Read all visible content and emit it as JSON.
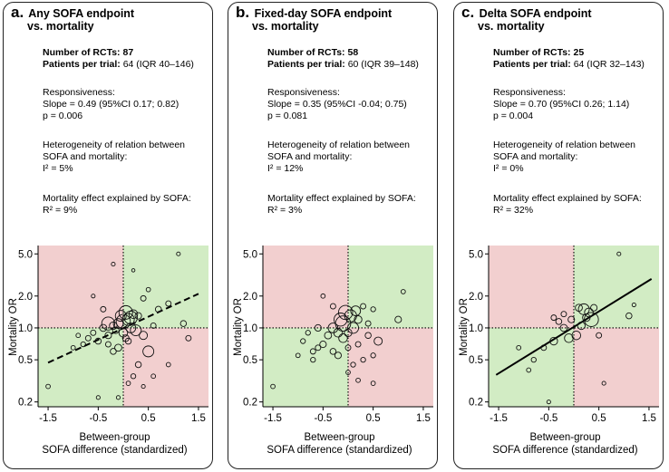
{
  "panels": [
    {
      "letter": "a.",
      "title_line1": "Any SOFA endpoint",
      "title_line2": "vs. mortality",
      "rcts_label": "Number of RCTs:",
      "rcts_value": "87",
      "patients_label": "Patients per trial:",
      "patients_value": "64 (IQR 40–146)",
      "responsiveness_label": "Responsiveness:",
      "slope_text": "Slope = 0.49 (95%CI 0.17; 0.82)",
      "p_text": "p = 0.006",
      "heterogeneity_label1": "Heterogeneity of relation between",
      "heterogeneity_label2": "SOFA and mortality:",
      "i2_text": "I² = 5%",
      "explained_label": "Mortality effect explained by SOFA:",
      "r2_text": "R² = 9%"
    },
    {
      "letter": "b.",
      "title_line1": "Fixed-day SOFA endpoint",
      "title_line2": "vs. mortality",
      "rcts_label": "Number of RCTs:",
      "rcts_value": "58",
      "patients_label": "Patients per trial:",
      "patients_value": "60 (IQR 39–148)",
      "responsiveness_label": "Responsiveness:",
      "slope_text": "Slope = 0.35 (95%CI -0.04; 0.75)",
      "p_text": "p = 0.081",
      "heterogeneity_label1": "Heterogeneity of relation between",
      "heterogeneity_label2": "SOFA and mortality:",
      "i2_text": "I² = 12%",
      "explained_label": "Mortality effect explained by SOFA:",
      "r2_text": "R² = 3%"
    },
    {
      "letter": "c.",
      "title_line1": "Delta SOFA endpoint",
      "title_line2": "vs. mortality",
      "rcts_label": "Number of RCTs:",
      "rcts_value": "25",
      "patients_label": "Patients per trial:",
      "patients_value": "64 (IQR 32–143)",
      "responsiveness_label": "Responsiveness:",
      "slope_text": "Slope = 0.70 (95%CI 0.26; 1.14)",
      "p_text": "p = 0.004",
      "heterogeneity_label1": "Heterogeneity of relation between",
      "heterogeneity_label2": "SOFA and mortality:",
      "i2_text": "I² = 0%",
      "explained_label": "Mortality effect explained by SOFA:",
      "r2_text": "R² = 32%"
    }
  ],
  "colors": {
    "green_quadrant": "#d2ecc4",
    "red_quadrant": "#f2cfcf",
    "points": "#111111"
  },
  "chart_data": [
    {
      "type": "scatter",
      "title": "Any SOFA endpoint vs. mortality",
      "xlabel": "Between-group SOFA difference (standardized)",
      "ylabel": "Mortality OR",
      "y_scale": "log",
      "xlim": [
        -1.7,
        1.7
      ],
      "ylim": [
        0.18,
        6.0
      ],
      "x_ticks": [
        "-1.5",
        "-0.5",
        "0.5",
        "1.5"
      ],
      "y_ticks": [
        "0.2",
        "0.5",
        "1.0",
        "2.0",
        "5.0"
      ],
      "reference_lines": {
        "x": 0,
        "y": 1.0,
        "style": "dotted"
      },
      "regression_line": {
        "style": "dashed",
        "slope": 0.49,
        "x": [
          -1.5,
          1.5
        ],
        "y": [
          0.47,
          2.1
        ]
      },
      "points": [
        {
          "x": 0.05,
          "y": 1.4,
          "size": 2.5
        },
        {
          "x": -0.05,
          "y": 1.3,
          "size": 2.0
        },
        {
          "x": 0.1,
          "y": 1.2,
          "size": 2.2
        },
        {
          "x": 0.15,
          "y": 1.0,
          "size": 1.8
        },
        {
          "x": -0.1,
          "y": 1.1,
          "size": 1.8
        },
        {
          "x": 0.0,
          "y": 1.15,
          "size": 2.6
        },
        {
          "x": 0.2,
          "y": 1.35,
          "size": 1.6
        },
        {
          "x": -0.2,
          "y": 1.05,
          "size": 1.4
        },
        {
          "x": -0.3,
          "y": 1.1,
          "size": 2.4
        },
        {
          "x": 0.25,
          "y": 0.95,
          "size": 2.0
        },
        {
          "x": 0.3,
          "y": 1.3,
          "size": 1.2
        },
        {
          "x": -0.4,
          "y": 1.0,
          "size": 1.3
        },
        {
          "x": -0.6,
          "y": 0.9,
          "size": 1.0
        },
        {
          "x": -0.7,
          "y": 0.8,
          "size": 1.0
        },
        {
          "x": -0.5,
          "y": 0.75,
          "size": 1.1
        },
        {
          "x": -0.8,
          "y": 0.7,
          "size": 0.9
        },
        {
          "x": -0.9,
          "y": 0.85,
          "size": 0.8
        },
        {
          "x": -1.0,
          "y": 0.65,
          "size": 0.8
        },
        {
          "x": -0.3,
          "y": 0.7,
          "size": 1.0
        },
        {
          "x": -0.2,
          "y": 0.6,
          "size": 1.1
        },
        {
          "x": -0.1,
          "y": 0.65,
          "size": 1.3
        },
        {
          "x": 0.1,
          "y": 0.75,
          "size": 1.1
        },
        {
          "x": 0.4,
          "y": 0.85,
          "size": 1.5
        },
        {
          "x": 0.5,
          "y": 0.6,
          "size": 2.0
        },
        {
          "x": 0.3,
          "y": 0.45,
          "size": 1.1
        },
        {
          "x": 0.2,
          "y": 0.35,
          "size": 0.9
        },
        {
          "x": 0.1,
          "y": 0.3,
          "size": 0.8
        },
        {
          "x": 0.6,
          "y": 0.35,
          "size": 0.8
        },
        {
          "x": 0.4,
          "y": 0.28,
          "size": 0.7
        },
        {
          "x": -1.5,
          "y": 0.28,
          "size": 0.8
        },
        {
          "x": -0.5,
          "y": 0.22,
          "size": 0.7
        },
        {
          "x": -0.1,
          "y": 0.22,
          "size": 0.7
        },
        {
          "x": -0.6,
          "y": 2.0,
          "size": 0.7
        },
        {
          "x": -0.2,
          "y": 4.0,
          "size": 0.7
        },
        {
          "x": 1.1,
          "y": 5.0,
          "size": 0.7
        },
        {
          "x": 0.9,
          "y": 1.7,
          "size": 1.0
        },
        {
          "x": 0.7,
          "y": 1.5,
          "size": 1.1
        },
        {
          "x": 0.6,
          "y": 1.05,
          "size": 1.0
        },
        {
          "x": 1.2,
          "y": 1.1,
          "size": 1.1
        },
        {
          "x": 1.3,
          "y": 0.8,
          "size": 1.0
        },
        {
          "x": 0.9,
          "y": 0.45,
          "size": 0.8
        },
        {
          "x": 0.5,
          "y": 2.3,
          "size": 0.8
        },
        {
          "x": 0.4,
          "y": 1.9,
          "size": 1.0
        },
        {
          "x": 0.2,
          "y": 3.5,
          "size": 0.6
        },
        {
          "x": -0.4,
          "y": 1.5,
          "size": 1.0
        },
        {
          "x": -0.3,
          "y": 0.85,
          "size": 1.2
        },
        {
          "x": 0.0,
          "y": 0.9,
          "size": 1.6
        },
        {
          "x": -0.15,
          "y": 0.95,
          "size": 1.2
        },
        {
          "x": 0.05,
          "y": 0.8,
          "size": 1.2
        },
        {
          "x": 0.15,
          "y": 1.25,
          "size": 2.4
        }
      ]
    },
    {
      "type": "scatter",
      "title": "Fixed-day SOFA endpoint vs. mortality",
      "xlabel": "Between-group SOFA difference (standardized)",
      "ylabel": "Mortality OR",
      "y_scale": "log",
      "xlim": [
        -1.7,
        1.7
      ],
      "ylim": [
        0.18,
        6.0
      ],
      "x_ticks": [
        "-1.5",
        "-0.5",
        "0.5",
        "1.5"
      ],
      "y_ticks": [
        "0.2",
        "0.5",
        "1.0",
        "2.0",
        "5.0"
      ],
      "reference_lines": {
        "x": 0,
        "y": 1.0,
        "style": "dotted"
      },
      "points": [
        {
          "x": -0.05,
          "y": 1.4,
          "size": 2.6
        },
        {
          "x": 0.05,
          "y": 1.3,
          "size": 2.2
        },
        {
          "x": -0.15,
          "y": 1.2,
          "size": 2.4
        },
        {
          "x": -0.1,
          "y": 1.1,
          "size": 2.8
        },
        {
          "x": 0.1,
          "y": 1.0,
          "size": 2.0
        },
        {
          "x": -0.3,
          "y": 1.0,
          "size": 1.8
        },
        {
          "x": 0.2,
          "y": 1.2,
          "size": 1.4
        },
        {
          "x": -0.2,
          "y": 0.9,
          "size": 1.6
        },
        {
          "x": -0.4,
          "y": 0.85,
          "size": 1.3
        },
        {
          "x": -0.5,
          "y": 0.7,
          "size": 1.2
        },
        {
          "x": -0.6,
          "y": 0.65,
          "size": 1.0
        },
        {
          "x": -0.7,
          "y": 0.6,
          "size": 1.0
        },
        {
          "x": -0.9,
          "y": 0.75,
          "size": 0.9
        },
        {
          "x": -1.0,
          "y": 0.55,
          "size": 0.8
        },
        {
          "x": -0.8,
          "y": 0.9,
          "size": 0.9
        },
        {
          "x": -0.3,
          "y": 0.6,
          "size": 1.1
        },
        {
          "x": -0.2,
          "y": 0.55,
          "size": 1.2
        },
        {
          "x": 0.0,
          "y": 0.65,
          "size": 1.0
        },
        {
          "x": 0.2,
          "y": 0.7,
          "size": 1.0
        },
        {
          "x": 0.4,
          "y": 0.85,
          "size": 1.1
        },
        {
          "x": 0.6,
          "y": 0.75,
          "size": 1.5
        },
        {
          "x": 0.5,
          "y": 0.55,
          "size": 0.9
        },
        {
          "x": 0.3,
          "y": 0.5,
          "size": 0.9
        },
        {
          "x": 0.1,
          "y": 0.45,
          "size": 0.9
        },
        {
          "x": 0.0,
          "y": 0.38,
          "size": 0.8
        },
        {
          "x": 0.2,
          "y": 0.32,
          "size": 0.8
        },
        {
          "x": 0.5,
          "y": 0.3,
          "size": 0.8
        },
        {
          "x": -0.7,
          "y": 0.5,
          "size": 0.9
        },
        {
          "x": -1.5,
          "y": 0.28,
          "size": 0.8
        },
        {
          "x": -0.5,
          "y": 2.0,
          "size": 0.8
        },
        {
          "x": -0.3,
          "y": 1.6,
          "size": 1.0
        },
        {
          "x": 0.3,
          "y": 1.6,
          "size": 1.0
        },
        {
          "x": 0.5,
          "y": 1.5,
          "size": 0.9
        },
        {
          "x": 1.0,
          "y": 1.2,
          "size": 1.2
        },
        {
          "x": 1.1,
          "y": 2.2,
          "size": 0.8
        },
        {
          "x": 0.4,
          "y": 1.1,
          "size": 1.0
        },
        {
          "x": -0.1,
          "y": 0.8,
          "size": 1.6
        },
        {
          "x": 0.0,
          "y": 0.9,
          "size": 1.4
        },
        {
          "x": -0.6,
          "y": 1.0,
          "size": 1.2
        },
        {
          "x": 0.15,
          "y": 1.45,
          "size": 1.8
        }
      ]
    },
    {
      "type": "scatter",
      "title": "Delta SOFA endpoint vs. mortality",
      "xlabel": "Between-group SOFA difference (standardized)",
      "ylabel": "Mortality OR",
      "y_scale": "log",
      "xlim": [
        -1.7,
        1.7
      ],
      "ylim": [
        0.18,
        6.0
      ],
      "x_ticks": [
        "-1.5",
        "-0.5",
        "0.5",
        "1.5"
      ],
      "y_ticks": [
        "0.2",
        "0.5",
        "1.0",
        "2.0",
        "5.0"
      ],
      "reference_lines": {
        "x": 0,
        "y": 1.0,
        "style": "dotted"
      },
      "regression_line": {
        "style": "solid",
        "slope": 0.7,
        "x": [
          -1.55,
          1.55
        ],
        "y": [
          0.36,
          2.9
        ]
      },
      "points": [
        {
          "x": 0.2,
          "y": 1.5,
          "size": 2.0
        },
        {
          "x": 0.3,
          "y": 1.4,
          "size": 1.6
        },
        {
          "x": 0.35,
          "y": 1.2,
          "size": 2.6
        },
        {
          "x": 0.15,
          "y": 1.05,
          "size": 1.4
        },
        {
          "x": -0.2,
          "y": 1.0,
          "size": 1.3
        },
        {
          "x": -0.3,
          "y": 1.15,
          "size": 1.1
        },
        {
          "x": -0.1,
          "y": 0.8,
          "size": 1.6
        },
        {
          "x": 0.05,
          "y": 0.85,
          "size": 1.6
        },
        {
          "x": -0.4,
          "y": 0.75,
          "size": 1.4
        },
        {
          "x": -0.6,
          "y": 0.65,
          "size": 1.0
        },
        {
          "x": -0.8,
          "y": 0.5,
          "size": 0.9
        },
        {
          "x": -0.9,
          "y": 0.4,
          "size": 0.8
        },
        {
          "x": -1.1,
          "y": 0.65,
          "size": 0.8
        },
        {
          "x": 0.5,
          "y": 0.85,
          "size": 1.0
        },
        {
          "x": 0.6,
          "y": 0.3,
          "size": 0.7
        },
        {
          "x": 1.1,
          "y": 1.3,
          "size": 1.1
        },
        {
          "x": 1.2,
          "y": 1.65,
          "size": 0.7
        },
        {
          "x": 0.9,
          "y": 5.0,
          "size": 0.7
        },
        {
          "x": -0.5,
          "y": 0.2,
          "size": 0.7
        },
        {
          "x": -0.2,
          "y": 1.35,
          "size": 1.0
        },
        {
          "x": 0.1,
          "y": 1.55,
          "size": 1.3
        },
        {
          "x": 0.4,
          "y": 1.55,
          "size": 1.2
        },
        {
          "x": -0.05,
          "y": 1.2,
          "size": 1.2
        },
        {
          "x": -0.4,
          "y": 1.25,
          "size": 1.0
        },
        {
          "x": 0.25,
          "y": 1.25,
          "size": 1.4
        }
      ]
    }
  ]
}
